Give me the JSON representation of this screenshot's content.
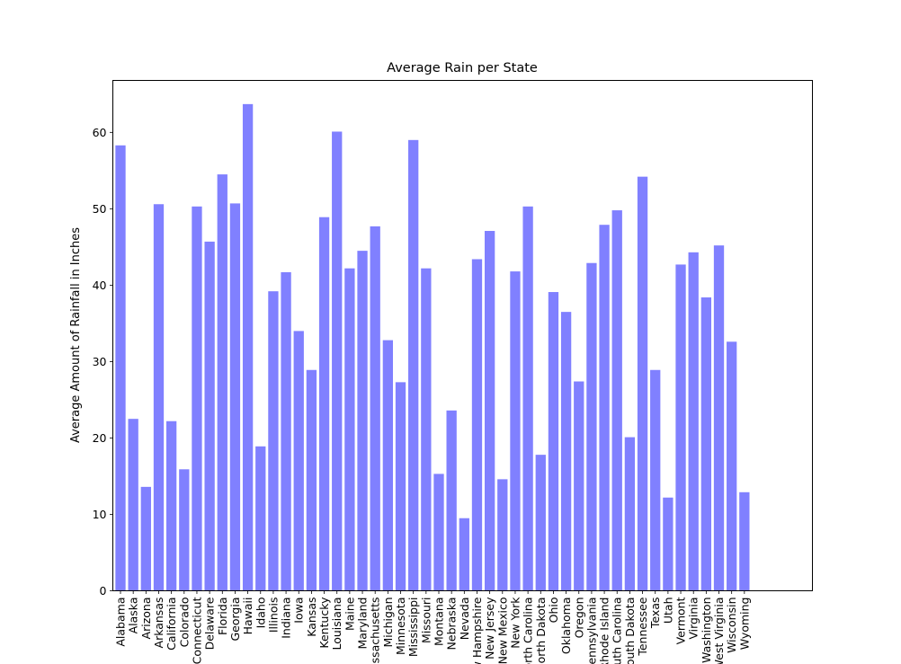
{
  "chart_data": {
    "type": "bar",
    "title": "Average Rain per State",
    "xlabel": "",
    "ylabel": "Average Amount of Rainfall in Inches",
    "ylim": [
      0,
      66.8
    ],
    "yticks": [
      0,
      10,
      20,
      30,
      40,
      50,
      60
    ],
    "bar_color": "#8080ff",
    "grid": false,
    "legend": "none",
    "categories": [
      "Alabama",
      "Alaska",
      "Arizona",
      "Arkansas",
      "California",
      "Colorado",
      "Connecticut",
      "Delaware",
      "Florida",
      "Georgia",
      "Hawaii",
      "Idaho",
      "Illinois",
      "Indiana",
      "Iowa",
      "Kansas",
      "Kentucky",
      "Louisiana",
      "Maine",
      "Maryland",
      "Massachusetts",
      "Michigan",
      "Minnesota",
      "Mississippi",
      "Missouri",
      "Montana",
      "Nebraska",
      "Nevada",
      "New Hampshire",
      "New Jersey",
      "New Mexico",
      "New York",
      "North Carolina",
      "North Dakota",
      "Ohio",
      "Oklahoma",
      "Oregon",
      "Pennsylvania",
      "Rhode Island",
      "South Carolina",
      "South Dakota",
      "Tennessee",
      "Texas",
      "Utah",
      "Vermont",
      "Virginia",
      "Washington",
      "West Virginia",
      "Wisconsin",
      "Wyoming"
    ],
    "values": [
      58.3,
      22.5,
      13.6,
      50.6,
      22.2,
      15.9,
      50.3,
      45.7,
      54.5,
      50.7,
      63.7,
      18.9,
      39.2,
      41.7,
      34.0,
      28.9,
      48.9,
      60.1,
      42.2,
      44.5,
      47.7,
      32.8,
      27.3,
      59.0,
      42.2,
      15.3,
      23.6,
      9.5,
      43.4,
      47.1,
      14.6,
      41.8,
      50.3,
      17.8,
      39.1,
      36.5,
      27.4,
      42.9,
      47.9,
      49.8,
      20.1,
      54.2,
      28.9,
      12.2,
      42.7,
      44.3,
      38.4,
      45.2,
      32.6,
      12.9
    ]
  }
}
